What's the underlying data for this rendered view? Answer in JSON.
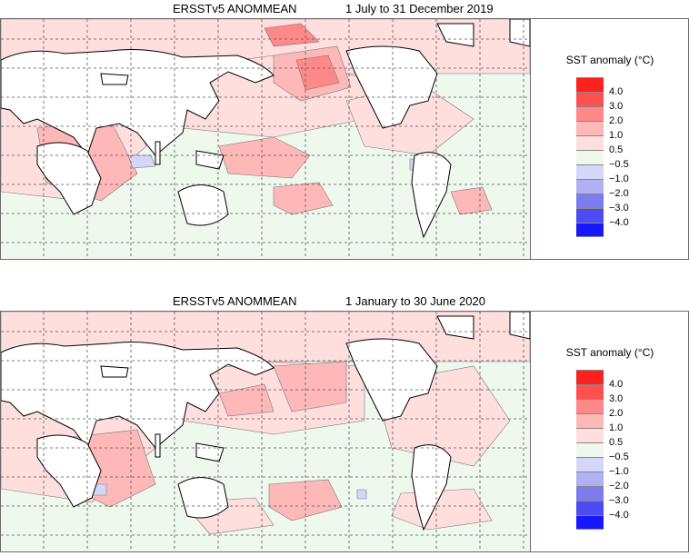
{
  "panels": [
    {
      "title_left": "ERSSTv5 ANOMMEAN",
      "title_right": "1 July to 31 December 2019",
      "legend_title": "SST anomaly (°C)"
    },
    {
      "title_left": "ERSSTv5 ANOMMEAN",
      "title_right": "1 January to 30 June 2020",
      "legend_title": "SST anomaly (°C)"
    }
  ],
  "legend": {
    "tick_labels": [
      "4.0",
      "3.0",
      "2.0",
      "1.0",
      "0.5",
      "−0.5",
      "−1.0",
      "−2.0",
      "−3.0",
      "−4.0"
    ],
    "colors": [
      "#ff2020",
      "#ff5050",
      "#ff8888",
      "#ffb8b8",
      "#ffdede",
      "#eef8ec",
      "#d6d6f8",
      "#b0b0f2",
      "#7c7cee",
      "#4c4cf2",
      "#1818ff"
    ]
  },
  "colors": {
    "land": "#ffffff",
    "coast": "#000000",
    "neutral_ocean": "#eef8ec",
    "grid": "#555555"
  }
}
